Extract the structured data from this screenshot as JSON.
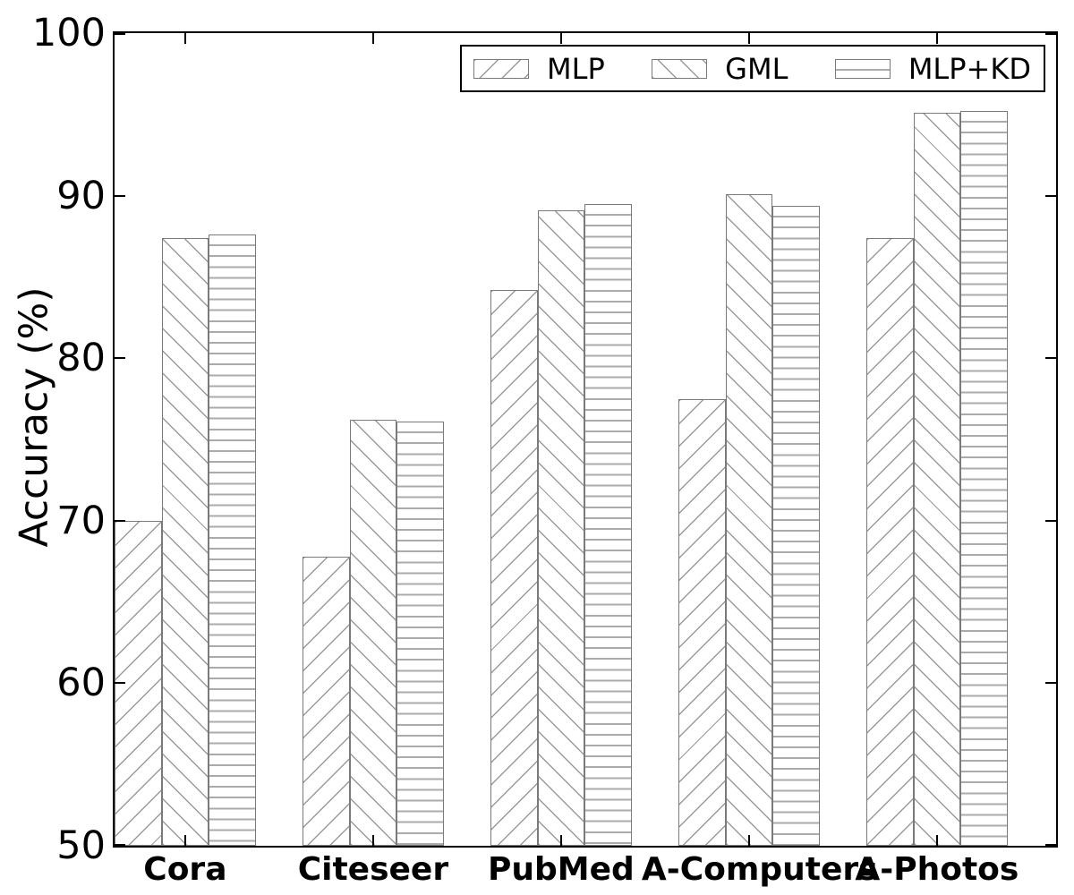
{
  "chart_data": {
    "type": "bar",
    "title": "",
    "xlabel": "",
    "ylabel": "Accuracy (%)",
    "ylim": [
      50,
      100
    ],
    "yticks": [
      50,
      60,
      70,
      80,
      90,
      100
    ],
    "ytick_labels": [
      "50",
      "60",
      "70",
      "80",
      "90",
      "100"
    ],
    "grid": false,
    "legend_position": "upper right",
    "categories": [
      "Cora",
      "Citeseer",
      "PubMed",
      "A-Computers",
      "A-Photos"
    ],
    "series": [
      {
        "name": "MLP",
        "hatch": "/",
        "values": [
          70.0,
          67.8,
          84.2,
          77.5,
          87.4
        ]
      },
      {
        "name": "GML",
        "hatch": "\\",
        "values": [
          87.4,
          76.2,
          89.1,
          90.1,
          95.1
        ]
      },
      {
        "name": "MLP+KD",
        "hatch": "-",
        "values": [
          87.6,
          76.1,
          89.5,
          89.4,
          95.2
        ]
      }
    ]
  },
  "colors": {
    "axis": "#000000",
    "bar_fill": "#ffffff",
    "bar_edge": "#7a7a7a",
    "hatch_diagonal": "#9a9a9a",
    "hatch_horizontal": "#ababab",
    "background": "#ffffff"
  }
}
